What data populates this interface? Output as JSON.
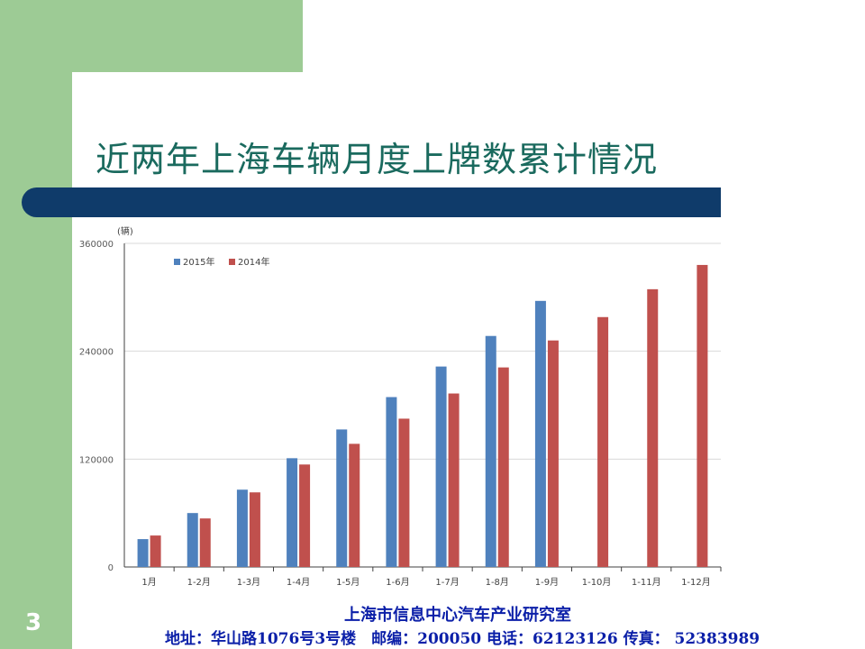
{
  "slide": {
    "title": "近两年上海车辆月度上牌数累计情况",
    "page_number": "3",
    "footer_line1": "上海市信息中心汽车产业研究室",
    "footer_line2": "地址：华山路1076号3号楼　邮编：200050 电话：62123126 传真： 52383989",
    "colors": {
      "green": "#9dcb95",
      "banner": "#0f3b6a",
      "title": "#1a6a5e",
      "footer": "#0b1fa8"
    }
  },
  "chart_data": {
    "type": "bar",
    "unit": "(辆)",
    "categories": [
      "1月",
      "1-2月",
      "1-3月",
      "1-4月",
      "1-5月",
      "1-6月",
      "1-7月",
      "1-8月",
      "1-9月",
      "1-10月",
      "1-11月",
      "1-12月"
    ],
    "series": [
      {
        "name": "2015年",
        "color": "#4f81bd",
        "values": [
          31000,
          60000,
          86000,
          121000,
          153000,
          189000,
          223000,
          257000,
          296000,
          null,
          null,
          null
        ]
      },
      {
        "name": "2014年",
        "color": "#c0504d",
        "values": [
          35000,
          54000,
          83000,
          114000,
          137000,
          165000,
          193000,
          222000,
          252000,
          278000,
          309000,
          336000
        ]
      }
    ],
    "ylim": [
      0,
      360000
    ],
    "yticks": [
      "0",
      "120000",
      "240000",
      "360000"
    ],
    "ytick_values": [
      0,
      120000,
      240000,
      360000
    ],
    "grid": true,
    "legend_position": "top-left"
  }
}
